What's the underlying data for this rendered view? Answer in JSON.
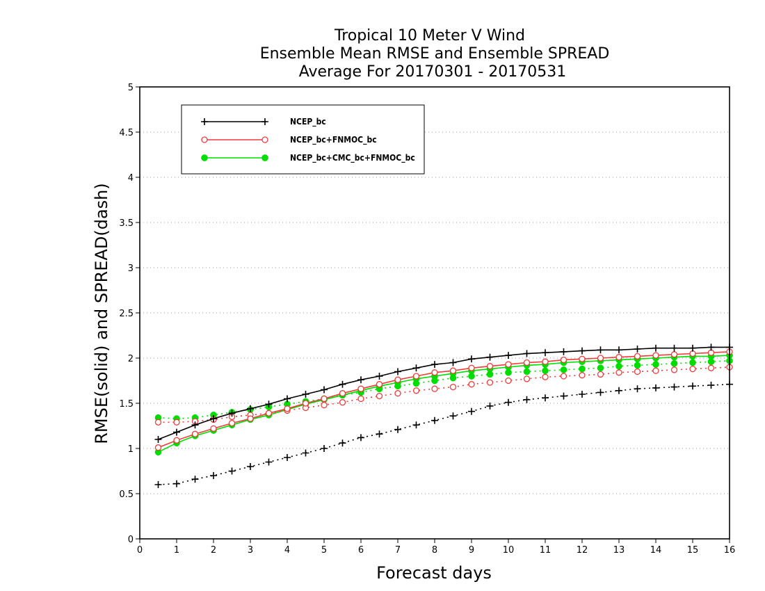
{
  "chart_data": {
    "type": "line",
    "title": [
      "Tropical 10 Meter V Wind",
      "Ensemble Mean RMSE and Ensemble SPREAD",
      "Average For 20170301 - 20170531"
    ],
    "xlabel": "Forecast days",
    "ylabel": "RMSE(solid) and SPREAD(dash)",
    "xlim": [
      0,
      16
    ],
    "ylim": [
      0,
      5
    ],
    "xticks": [
      0,
      1,
      2,
      3,
      4,
      5,
      6,
      7,
      8,
      9,
      10,
      11,
      12,
      13,
      14,
      15,
      16
    ],
    "yticks": [
      0,
      0.5,
      1,
      1.5,
      2,
      2.5,
      3,
      3.5,
      4,
      4.5,
      5
    ],
    "ytick_labels": [
      "0",
      "0.5",
      "1",
      "1.5",
      "2",
      "2.5",
      "3",
      "3.5",
      "4",
      "4.5",
      "5"
    ],
    "grid": "horizontal dotted",
    "legend_position": "top-left",
    "x": [
      0.5,
      1.0,
      1.5,
      2.0,
      2.5,
      3.0,
      3.5,
      4.0,
      4.5,
      5.0,
      5.5,
      6.0,
      6.5,
      7.0,
      7.5,
      8.0,
      8.5,
      9.0,
      9.5,
      10.0,
      10.5,
      11.0,
      11.5,
      12.0,
      12.5,
      13.0,
      13.5,
      14.0,
      14.5,
      15.0,
      15.5,
      16.0
    ],
    "series": [
      {
        "name": "NCEP_bc",
        "color": "#000000",
        "marker": "plus",
        "rmse": [
          1.1,
          1.18,
          1.26,
          1.33,
          1.39,
          1.44,
          1.49,
          1.55,
          1.6,
          1.65,
          1.71,
          1.76,
          1.8,
          1.85,
          1.89,
          1.93,
          1.95,
          1.99,
          2.01,
          2.03,
          2.05,
          2.06,
          2.07,
          2.08,
          2.09,
          2.09,
          2.1,
          2.11,
          2.11,
          2.11,
          2.12,
          2.12
        ],
        "spread": [
          0.6,
          0.61,
          0.66,
          0.7,
          0.75,
          0.8,
          0.85,
          0.9,
          0.95,
          1.0,
          1.06,
          1.12,
          1.16,
          1.21,
          1.26,
          1.31,
          1.36,
          1.41,
          1.47,
          1.51,
          1.54,
          1.56,
          1.58,
          1.6,
          1.62,
          1.64,
          1.66,
          1.67,
          1.68,
          1.69,
          1.7,
          1.71
        ]
      },
      {
        "name": "NCEP_bc+FNMOC_bc",
        "color": "#ee3b3b",
        "marker": "open-circle",
        "rmse": [
          1.01,
          1.09,
          1.16,
          1.22,
          1.28,
          1.33,
          1.39,
          1.44,
          1.5,
          1.55,
          1.61,
          1.66,
          1.71,
          1.76,
          1.8,
          1.84,
          1.86,
          1.89,
          1.91,
          1.93,
          1.95,
          1.96,
          1.98,
          1.99,
          2.0,
          2.01,
          2.02,
          2.03,
          2.04,
          2.05,
          2.06,
          2.07
        ],
        "spread": [
          1.29,
          1.29,
          1.3,
          1.32,
          1.35,
          1.37,
          1.39,
          1.42,
          1.45,
          1.48,
          1.51,
          1.55,
          1.58,
          1.61,
          1.64,
          1.66,
          1.68,
          1.71,
          1.73,
          1.75,
          1.77,
          1.79,
          1.8,
          1.81,
          1.82,
          1.84,
          1.85,
          1.86,
          1.87,
          1.88,
          1.89,
          1.9
        ]
      },
      {
        "name": "NCEP_bc+CMC_bc+FNMOC_bc",
        "color": "#00dd00",
        "marker": "filled-circle",
        "rmse": [
          0.96,
          1.06,
          1.14,
          1.2,
          1.26,
          1.32,
          1.37,
          1.43,
          1.49,
          1.54,
          1.59,
          1.64,
          1.69,
          1.73,
          1.77,
          1.8,
          1.83,
          1.86,
          1.88,
          1.9,
          1.92,
          1.93,
          1.95,
          1.96,
          1.97,
          1.98,
          1.99,
          2.0,
          2.01,
          2.02,
          2.02,
          2.03
        ],
        "spread": [
          1.34,
          1.33,
          1.34,
          1.37,
          1.4,
          1.43,
          1.46,
          1.49,
          1.52,
          1.55,
          1.59,
          1.62,
          1.66,
          1.69,
          1.72,
          1.75,
          1.78,
          1.8,
          1.82,
          1.84,
          1.85,
          1.86,
          1.87,
          1.88,
          1.89,
          1.91,
          1.92,
          1.93,
          1.94,
          1.95,
          1.96,
          1.97
        ]
      }
    ]
  }
}
